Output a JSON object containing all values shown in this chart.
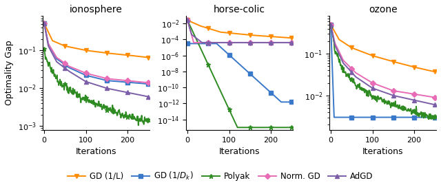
{
  "titles": [
    "ionosphere",
    "horse-colic",
    "ozone"
  ],
  "xlabel": "Iterations",
  "ylabel": "Optimality Gap",
  "n_iter": 251,
  "colors": {
    "GD_L": "#FF8C00",
    "GD_Dk": "#3A78C9",
    "Polyak": "#2E8B22",
    "NormGD": "#E86BB5",
    "AdGD": "#7B5EA7"
  },
  "markers": {
    "GD_L": "v",
    "GD_Dk": "s",
    "Polyak": "*",
    "NormGD": "D",
    "AdGD": "^"
  },
  "label_map": {
    "GD_L": "GD (1/L)",
    "GD_Dk": "GD (1/D_k)",
    "Polyak": "Polyak",
    "NormGD": "Norm. GD",
    "AdGD": "AdGD"
  },
  "ylims": {
    "ionosphere": [
      0.0008,
      0.8
    ],
    "horse-colic": [
      5e-16,
      0.08
    ],
    "ozone": [
      0.0015,
      0.8
    ]
  },
  "figsize": [
    6.4,
    2.69
  ],
  "dpi": 100
}
